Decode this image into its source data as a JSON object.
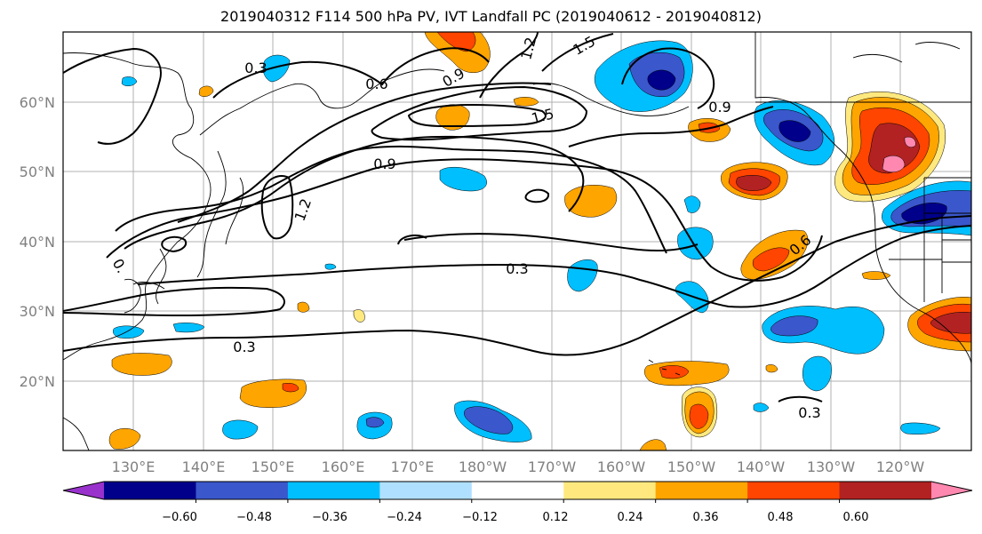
{
  "title": "2019040312 F114 500 hPa PV, IVT Landfall PC (2019040612 - 2019040812)",
  "map": {
    "lon_labels": [
      "130°E",
      "140°E",
      "150°E",
      "160°E",
      "170°E",
      "180°W",
      "170°W",
      "160°W",
      "150°W",
      "140°W",
      "130°W",
      "120°W"
    ],
    "lat_labels": [
      "20°N",
      "30°N",
      "40°N",
      "50°N",
      "60°N"
    ],
    "contour_labels": [
      {
        "value": "0.3"
      },
      {
        "value": "0.6"
      },
      {
        "value": "0.9"
      },
      {
        "value": "1.2"
      },
      {
        "value": "1.5"
      },
      {
        "value": "0.9"
      },
      {
        "value": "0.3"
      },
      {
        "value": "0.3"
      },
      {
        "value": "0.6"
      },
      {
        "value": "0.3"
      },
      {
        "value": "1.2"
      },
      {
        "value": "1.5"
      },
      {
        "value": "0.9"
      },
      {
        "value": "0."
      }
    ]
  },
  "colorbar": {
    "tick_labels": [
      "−0.60",
      "−0.48",
      "−0.36",
      "−0.24",
      "−0.12",
      "0.12",
      "0.24",
      "0.36",
      "0.48",
      "0.60"
    ],
    "colors": [
      "#9932CC",
      "#00008B",
      "#3A57CC",
      "#00BFFF",
      "#B0E0FF",
      "#FFFFFF",
      "#FFE97F",
      "#FFA500",
      "#FF4500",
      "#B22222",
      "#FF88B0"
    ]
  }
}
